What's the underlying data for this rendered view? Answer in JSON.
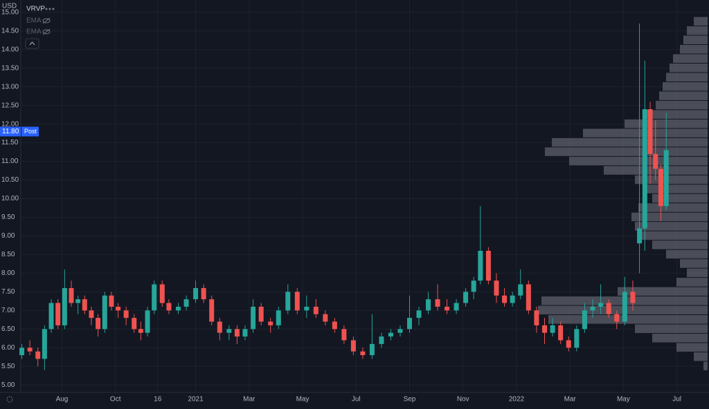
{
  "chart_data": {
    "type": "candlestick",
    "currency": "USD",
    "indicators": [
      "VRVP",
      "EMA",
      "EMA"
    ],
    "up_color": "#26a69a",
    "down_color": "#ef5350",
    "grid": true,
    "ylim": [
      4.8,
      15.33
    ],
    "yticks": [
      {
        "value": 5,
        "label": "5.00"
      },
      {
        "value": 5.5,
        "label": "5.50"
      },
      {
        "value": 6,
        "label": "6.00"
      },
      {
        "value": 6.5,
        "label": "6.50"
      },
      {
        "value": 7,
        "label": "7.00"
      },
      {
        "value": 7.5,
        "label": "7.50"
      },
      {
        "value": 8,
        "label": "8.00"
      },
      {
        "value": 8.5,
        "label": "8.50"
      },
      {
        "value": 9,
        "label": "9.00"
      },
      {
        "value": 9.5,
        "label": "9.50"
      },
      {
        "value": 10,
        "label": "10.00"
      },
      {
        "value": 10.5,
        "label": "10.50"
      },
      {
        "value": 11,
        "label": "11.00"
      },
      {
        "value": 11.5,
        "label": "11.50"
      },
      {
        "value": 12,
        "label": "12.00"
      },
      {
        "value": 12.5,
        "label": "12.50"
      },
      {
        "value": 13,
        "label": "13.00"
      },
      {
        "value": 13.5,
        "label": "13.50"
      },
      {
        "value": 14,
        "label": "14.00"
      },
      {
        "value": 14.5,
        "label": "14.50"
      },
      {
        "value": 15,
        "label": "15.00"
      }
    ],
    "xlim": [
      -0.54,
      25.2
    ],
    "xticks": [
      {
        "value": 1,
        "label": "Aug"
      },
      {
        "value": 3,
        "label": "Oct"
      },
      {
        "value": 4.58,
        "label": "16"
      },
      {
        "value": 6,
        "label": "2021"
      },
      {
        "value": 8,
        "label": "Mar"
      },
      {
        "value": 10,
        "label": "May"
      },
      {
        "value": 12,
        "label": "Jul"
      },
      {
        "value": 14,
        "label": "Sep"
      },
      {
        "value": 16,
        "label": "Nov"
      },
      {
        "value": 18,
        "label": "2022"
      },
      {
        "value": 20,
        "label": "Mar"
      },
      {
        "value": 22,
        "label": "May"
      },
      {
        "value": 24,
        "label": "Jul"
      }
    ],
    "current_price": {
      "value": 11.8,
      "label": "11.80"
    },
    "session": "Post",
    "x": [
      -0.5,
      -0.2,
      0.1,
      0.35,
      0.6,
      0.85,
      1.1,
      1.35,
      1.6,
      1.85,
      2.1,
      2.35,
      2.6,
      2.85,
      3.1,
      3.4,
      3.7,
      3.95,
      4.2,
      4.45,
      4.75,
      5.0,
      5.35,
      5.65,
      6.0,
      6.3,
      6.6,
      6.9,
      7.25,
      7.55,
      7.85,
      8.15,
      8.45,
      8.8,
      9.1,
      9.45,
      9.8,
      10.15,
      10.5,
      10.85,
      11.2,
      11.55,
      11.9,
      12.25,
      12.6,
      12.95,
      13.3,
      13.65,
      14.0,
      14.35,
      14.7,
      15.05,
      15.4,
      15.75,
      16.1,
      16.4,
      16.65,
      16.95,
      17.25,
      17.55,
      17.85,
      18.15,
      18.45,
      18.75,
      19.05,
      19.35,
      19.65,
      19.95,
      20.25,
      20.55,
      20.85,
      21.15,
      21.45,
      21.75,
      22.05,
      22.35,
      22.6,
      22.8,
      23.0,
      23.2,
      23.4,
      23.6
    ],
    "open": [
      5.8,
      6.0,
      5.9,
      5.7,
      6.5,
      7.2,
      6.6,
      7.6,
      7.2,
      7.3,
      7.0,
      6.8,
      6.5,
      7.4,
      7.1,
      7.0,
      6.8,
      6.5,
      6.4,
      7.0,
      7.7,
      7.2,
      7.0,
      7.1,
      7.3,
      7.6,
      7.3,
      6.7,
      6.4,
      6.5,
      6.3,
      6.5,
      7.1,
      6.7,
      6.6,
      7.0,
      7.5,
      7.0,
      7.1,
      6.9,
      6.7,
      6.5,
      6.2,
      5.9,
      5.8,
      6.1,
      6.3,
      6.4,
      6.5,
      6.8,
      7.0,
      7.3,
      7.1,
      7.0,
      7.2,
      7.5,
      7.8,
      8.6,
      7.8,
      7.4,
      7.2,
      7.4,
      7.7,
      7.0,
      6.6,
      6.4,
      6.6,
      6.2,
      6.0,
      6.5,
      7.0,
      7.1,
      7.2,
      6.9,
      6.7,
      7.5,
      8.8,
      9.2,
      12.4,
      11.2,
      10.8,
      9.8
    ],
    "high": [
      6.1,
      6.2,
      6.0,
      6.6,
      7.3,
      7.3,
      8.1,
      7.8,
      7.4,
      7.4,
      7.1,
      6.9,
      7.5,
      7.5,
      7.2,
      7.1,
      6.9,
      6.7,
      7.1,
      7.8,
      7.8,
      7.3,
      7.2,
      7.4,
      7.8,
      7.7,
      7.4,
      6.8,
      6.6,
      6.6,
      6.6,
      7.3,
      7.2,
      6.8,
      7.1,
      7.7,
      7.6,
      7.4,
      7.3,
      7.0,
      6.8,
      6.6,
      6.3,
      6.0,
      6.9,
      6.4,
      6.5,
      6.6,
      7.4,
      7.1,
      7.5,
      7.7,
      7.3,
      7.3,
      7.6,
      7.9,
      9.8,
      8.7,
      8.0,
      7.6,
      7.5,
      8.1,
      7.8,
      7.1,
      6.8,
      6.8,
      6.7,
      6.3,
      6.6,
      7.2,
      7.3,
      7.7,
      7.3,
      7.0,
      7.9,
      7.8,
      14.7,
      13.7,
      12.6,
      12.1,
      10.9,
      12.3
    ],
    "low": [
      5.7,
      5.8,
      5.5,
      5.4,
      6.4,
      6.5,
      6.5,
      7.1,
      6.9,
      6.9,
      6.6,
      6.3,
      6.4,
      7.0,
      6.8,
      6.6,
      6.4,
      6.2,
      6.3,
      6.9,
      7.1,
      6.9,
      6.9,
      7.0,
      7.2,
      7.2,
      6.6,
      6.2,
      6.2,
      6.1,
      6.2,
      6.4,
      6.6,
      6.4,
      6.5,
      6.9,
      6.9,
      6.8,
      6.8,
      6.6,
      6.4,
      6.1,
      5.8,
      5.7,
      5.7,
      6.0,
      6.2,
      6.3,
      6.4,
      6.6,
      6.9,
      7.0,
      6.9,
      6.9,
      7.1,
      7.3,
      7.7,
      7.7,
      7.2,
      7.1,
      7.1,
      7.3,
      6.9,
      6.4,
      6.1,
      6.3,
      6.1,
      5.9,
      5.9,
      6.4,
      6.8,
      6.9,
      6.8,
      6.5,
      6.6,
      7.0,
      8.0,
      8.6,
      10.4,
      10.5,
      9.4,
      9.7
    ],
    "close": [
      6.0,
      5.9,
      5.7,
      6.5,
      7.2,
      6.6,
      7.6,
      7.2,
      7.3,
      7.0,
      6.8,
      6.5,
      7.4,
      7.1,
      7.0,
      6.8,
      6.5,
      6.4,
      7.0,
      7.7,
      7.2,
      7.0,
      7.1,
      7.3,
      7.6,
      7.3,
      6.7,
      6.4,
      6.5,
      6.3,
      6.5,
      7.1,
      6.7,
      6.6,
      7.0,
      7.5,
      7.0,
      7.1,
      6.9,
      6.7,
      6.5,
      6.2,
      5.9,
      5.8,
      6.1,
      6.3,
      6.4,
      6.5,
      6.8,
      7.0,
      7.3,
      7.1,
      7.0,
      7.2,
      7.5,
      7.8,
      8.6,
      7.8,
      7.4,
      7.2,
      7.4,
      7.7,
      7.0,
      6.6,
      6.4,
      6.6,
      6.2,
      6.0,
      6.5,
      7.0,
      7.1,
      7.2,
      6.9,
      6.7,
      7.5,
      7.2,
      9.2,
      12.4,
      11.2,
      10.8,
      9.8,
      11.3
    ],
    "volume_profile": {
      "color": "#5d606b",
      "prices": [
        5.5,
        5.75,
        6.0,
        6.25,
        6.5,
        6.75,
        7.0,
        7.25,
        7.5,
        7.75,
        8.0,
        8.25,
        8.5,
        8.75,
        9.0,
        9.25,
        9.5,
        9.75,
        10.0,
        10.25,
        10.5,
        10.75,
        11.0,
        11.25,
        11.5,
        11.75,
        12.0,
        12.25,
        12.5,
        12.75,
        13.0,
        13.25,
        13.5,
        13.75,
        14.0,
        14.25,
        14.5,
        14.75
      ],
      "values": [
        6,
        20,
        45,
        80,
        105,
        230,
        245,
        240,
        130,
        45,
        30,
        40,
        60,
        80,
        100,
        105,
        110,
        100,
        80,
        90,
        105,
        150,
        200,
        235,
        225,
        180,
        120,
        90,
        75,
        70,
        65,
        60,
        55,
        50,
        40,
        35,
        30,
        20
      ]
    }
  }
}
